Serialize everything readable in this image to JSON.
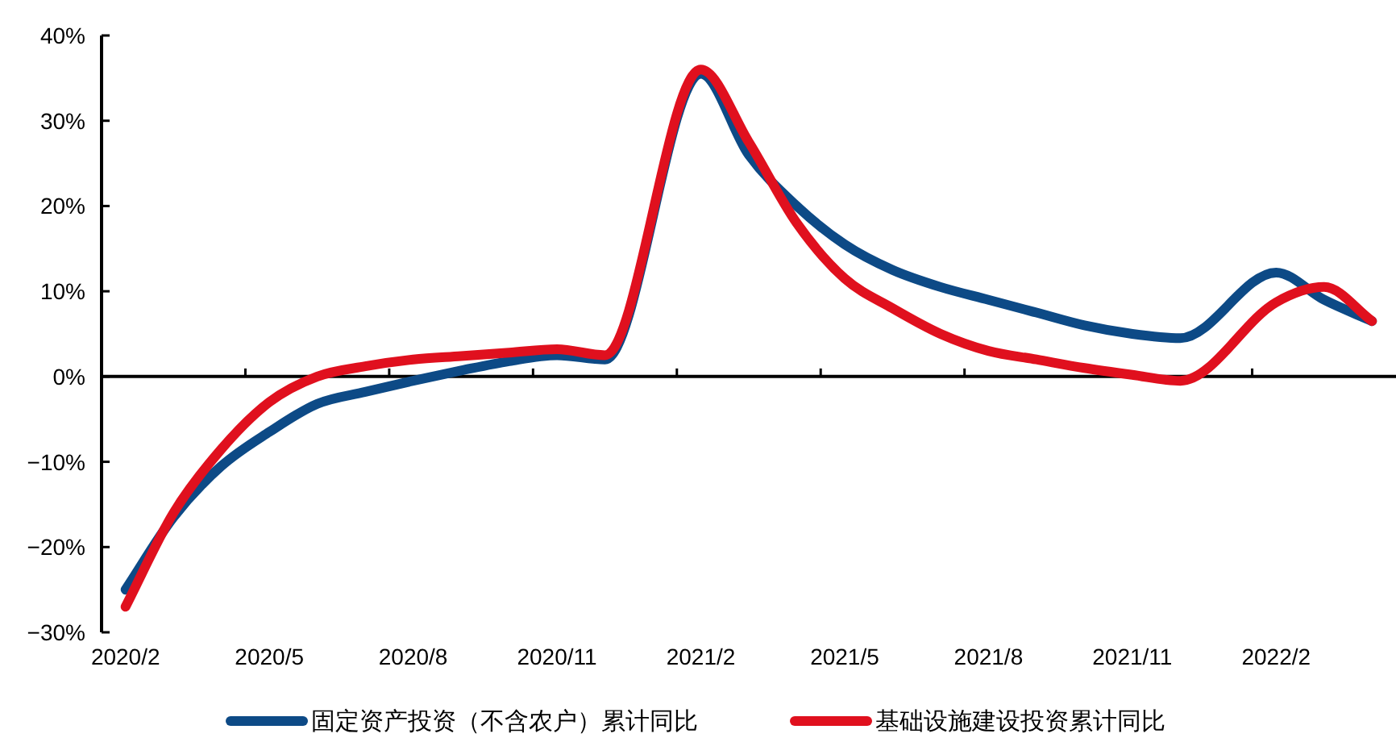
{
  "chart_data": {
    "type": "line",
    "categories": [
      "2020/2",
      null,
      null,
      "2020/5",
      null,
      null,
      "2020/8",
      null,
      null,
      "2020/11",
      null,
      null,
      "2021/2",
      null,
      null,
      "2021/5",
      null,
      null,
      "2021/8",
      null,
      null,
      "2021/11",
      null,
      null,
      "2022/2",
      null,
      null
    ],
    "series": [
      {
        "name": "固定资产投资（不含农户）累计同比",
        "color": "#0d4a86",
        "values": [
          -25,
          -16.5,
          -10.5,
          -6.5,
          -3.2,
          -1.8,
          -0.5,
          0.7,
          1.8,
          2.5,
          2.0,
          null,
          35.5,
          26,
          20,
          15.5,
          12.5,
          10.5,
          9,
          7.5,
          6,
          5,
          4.5,
          null,
          12.2,
          9,
          6.5
        ]
      },
      {
        "name": "基础设施建设投资累计同比",
        "color": "#e0101e",
        "values": [
          -27,
          -16,
          -8.5,
          -3,
          0,
          1.2,
          2,
          2.4,
          2.8,
          3.2,
          2.5,
          null,
          36,
          27.5,
          18,
          11.5,
          8,
          5,
          3,
          2,
          1,
          0.2,
          -0.5,
          null,
          8.7,
          10.5,
          6.5
        ]
      }
    ],
    "ylim": [
      -30,
      40
    ],
    "yticks": [
      {
        "value": -30,
        "label": "−30%"
      },
      {
        "value": -20,
        "label": "−20%"
      },
      {
        "value": -10,
        "label": "−10%"
      },
      {
        "value": 0,
        "label": "0%"
      },
      {
        "value": 10,
        "label": "10%"
      },
      {
        "value": 20,
        "label": "20%"
      },
      {
        "value": 30,
        "label": "30%"
      },
      {
        "value": 40,
        "label": "40%"
      }
    ],
    "legend": "bottom",
    "marker": "none",
    "line_style": "solid"
  }
}
